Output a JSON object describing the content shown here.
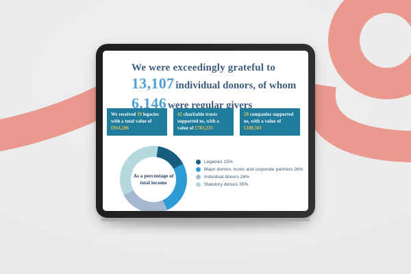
{
  "background": {
    "color": "#ebebec",
    "ribbon_color": "#ea998e"
  },
  "headline": {
    "line1": "We were exceedingly grateful to",
    "stat1_value": "13,107",
    "stat1_text": "individual donors, of whom",
    "stat2_value": "6,146",
    "stat2_text": "were regular givers",
    "text_color": "#3d5c7d",
    "accent_color": "#4fa0ce"
  },
  "stat_boxes": {
    "bg_color": "#1f7c9c",
    "highlight_color": "#e7c750",
    "items": [
      {
        "t0": "We received ",
        "v1": "39",
        "t1": " legacies with a total value of ",
        "v2": "£914,206"
      },
      {
        "t0": "",
        "v1": "42",
        "t1": " charitable trusts supported us, with a value of ",
        "v2": "£783,235"
      },
      {
        "t0": "",
        "v1": "20",
        "t1": " companies supported us, with a value of ",
        "v2": "£108,501"
      }
    ]
  },
  "chart_data": {
    "type": "pie",
    "donut": true,
    "title": "As a percentage of total income",
    "center_label": [
      "As a percentage of",
      "total income"
    ],
    "start_angle_deg": 8,
    "legend_position": "right",
    "slices": [
      {
        "label": "Legacies",
        "value": 15,
        "color": "#175d80"
      },
      {
        "label": "Major donors, trusts and corporate partners",
        "value": 26,
        "color": "#2d9bd6"
      },
      {
        "label": "Individual donors",
        "value": 24,
        "color": "#a6b8d0"
      },
      {
        "label": "Statutory donors",
        "value": 35,
        "color": "#b3d8dd"
      }
    ]
  }
}
